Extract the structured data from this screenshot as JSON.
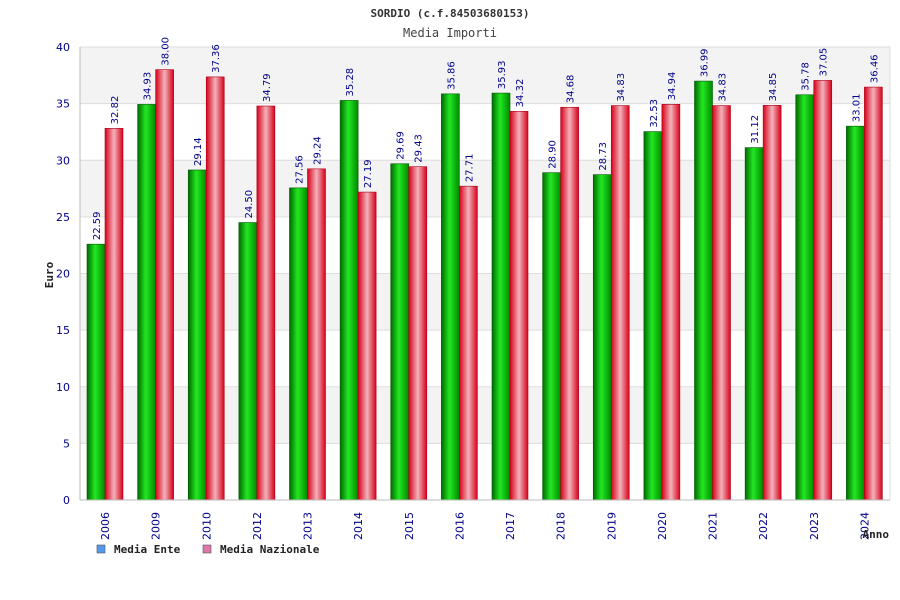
{
  "chart_data": {
    "type": "bar",
    "title": "SORDIO (c.f.84503680153)",
    "subtitle": "Media Importi",
    "ylabel": "Euro",
    "xlabel": "Anno",
    "ylim": [
      0,
      40
    ],
    "yticks": [
      0,
      5,
      10,
      15,
      20,
      25,
      30,
      35,
      40
    ],
    "grid": true,
    "legend_position": "bottom-left",
    "categories": [
      "2006",
      "2009",
      "2010",
      "2012",
      "2013",
      "2014",
      "2015",
      "2016",
      "2017",
      "2018",
      "2019",
      "2020",
      "2021",
      "2022",
      "2023",
      "2024"
    ],
    "series": [
      {
        "name": "Media Ente",
        "color": "#00c800",
        "legend_color": "#5599ee",
        "values": [
          22.59,
          34.93,
          29.14,
          24.5,
          27.56,
          35.28,
          29.69,
          35.86,
          35.93,
          28.9,
          28.73,
          32.53,
          36.99,
          31.12,
          35.78,
          33.01
        ],
        "labels": [
          "22.59",
          "34.93",
          "29.14",
          "24.50",
          "27.56",
          "35.28",
          "29.69",
          "35.86",
          "35.93",
          "28.90",
          "28.73",
          "32.53",
          "36.99",
          "31.12",
          "35.78",
          "33.01"
        ]
      },
      {
        "name": "Media Nazionale",
        "color": "#ee1c2c",
        "legend_color": "#dd77aa",
        "values": [
          32.82,
          38.0,
          37.36,
          34.79,
          29.24,
          27.19,
          29.43,
          27.71,
          34.32,
          34.68,
          34.83,
          34.94,
          34.83,
          34.85,
          37.05,
          36.46
        ],
        "labels": [
          "32.82",
          "38.00",
          "37.36",
          "34.79",
          "29.24",
          "27.19",
          "29.43",
          "27.71",
          "34.32",
          "34.68",
          "34.83",
          "34.94",
          "34.83",
          "34.85",
          "37.05",
          "36.46"
        ]
      }
    ]
  }
}
